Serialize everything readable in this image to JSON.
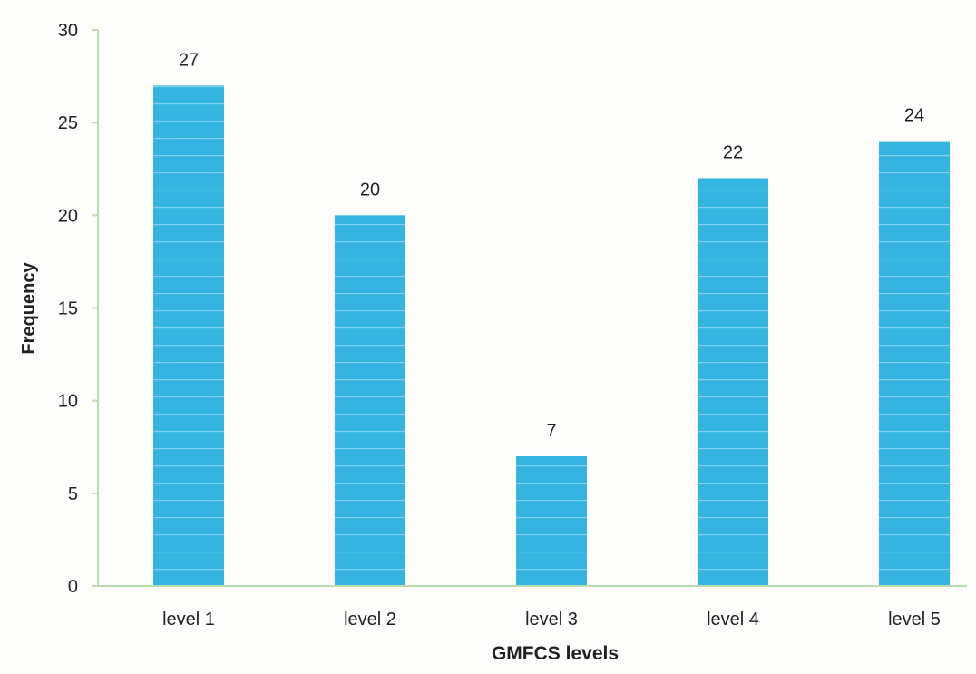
{
  "chart_data": {
    "type": "bar",
    "title": "",
    "xlabel": "GMFCS levels",
    "ylabel": "Frequency",
    "categories": [
      "level 1",
      "level 2",
      "level 3",
      "level 4",
      "level 5"
    ],
    "values": [
      27,
      20,
      7,
      22,
      24
    ],
    "data_labels": [
      "27",
      "20",
      "7",
      "22",
      "24"
    ],
    "ylim": [
      0,
      30
    ],
    "yticks": [
      0,
      5,
      10,
      15,
      20,
      25,
      30
    ],
    "ytick_labels": [
      "0",
      "5",
      "10",
      "15",
      "20",
      "25",
      "30"
    ],
    "grid": false,
    "legend": "none",
    "colors": {
      "bar": "#33b5e0",
      "bar_stripe": "#7fd2ef",
      "axis": "#b9dcb0",
      "text": "#222222"
    }
  }
}
